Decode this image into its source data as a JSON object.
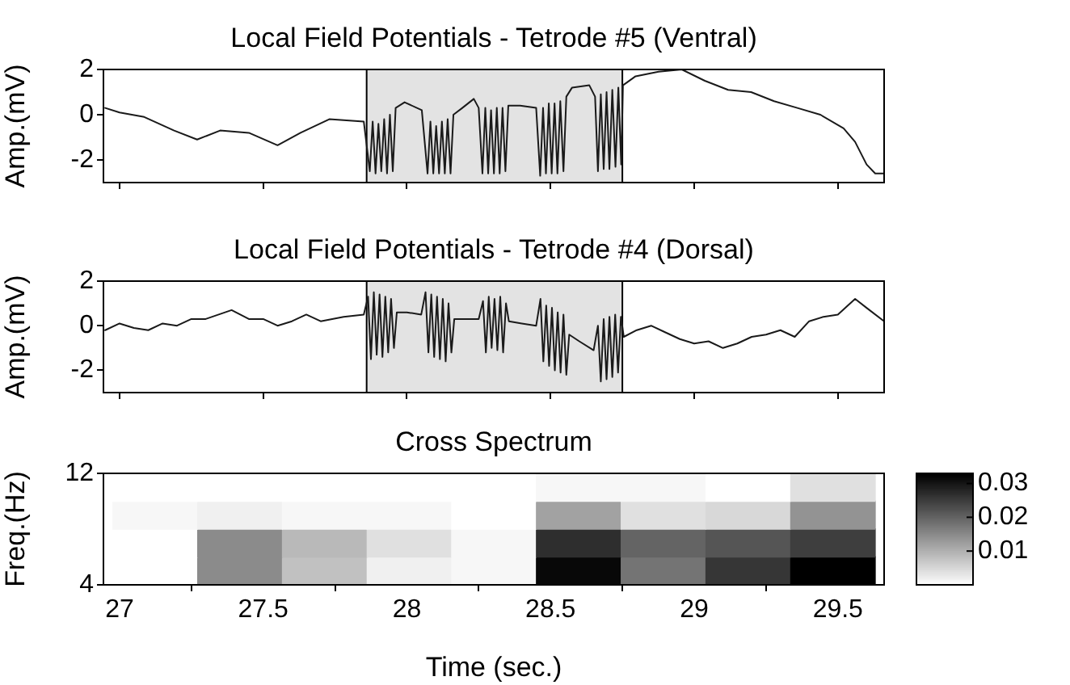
{
  "chart_data": [
    {
      "type": "line",
      "title": "Local Field Potentials - Tetrode #5 (Ventral)",
      "ylabel": "Amp.(mV)",
      "xlim": [
        26.944,
        29.661
      ],
      "xticks": [
        {
          "value": 27,
          "label": null
        },
        {
          "value": 27.5,
          "label": null
        },
        {
          "value": 28,
          "label": null
        },
        {
          "value": 28.5,
          "label": null
        },
        {
          "value": 29,
          "label": null
        },
        {
          "value": 29.5,
          "label": null
        }
      ],
      "ylim": [
        -3,
        2
      ],
      "yticks": [
        -2,
        0,
        2
      ],
      "tick_labels": "y",
      "grid": false,
      "legend": false,
      "marker": "none",
      "line_style": "solid",
      "bands": [
        {
          "axis": "x",
          "from": 27.86,
          "to": 28.75,
          "color": "#e3e3e3"
        }
      ],
      "ref_lines": [
        {
          "axis": "x",
          "value": 27.86,
          "color": "#000000"
        },
        {
          "axis": "x",
          "value": 28.75,
          "color": "#000000"
        }
      ],
      "series": [
        {
          "color": "#1a1a1a",
          "x": [
            26.95,
            27.0,
            27.086,
            27.19,
            27.27,
            27.35,
            27.45,
            27.55,
            27.63,
            27.73,
            27.85,
            27.871,
            27.881,
            27.891,
            27.901,
            27.911,
            27.921,
            27.931,
            27.941,
            27.951,
            27.961,
            27.992,
            28.052,
            28.072,
            28.082,
            28.092,
            28.102,
            28.112,
            28.122,
            28.132,
            28.142,
            28.152,
            28.162,
            28.193,
            28.233,
            28.25,
            28.263,
            28.273,
            28.283,
            28.293,
            28.303,
            28.313,
            28.323,
            28.333,
            28.343,
            28.353,
            28.394,
            28.45,
            28.464,
            28.474,
            28.484,
            28.494,
            28.504,
            28.514,
            28.524,
            28.534,
            28.545,
            28.555,
            28.575,
            28.635,
            28.655,
            28.665,
            28.675,
            28.685,
            28.695,
            28.705,
            28.715,
            28.726,
            28.736,
            28.746,
            28.752,
            28.796,
            28.876,
            28.957,
            29.037,
            29.118,
            29.198,
            29.278,
            29.359,
            29.439,
            29.52,
            29.56,
            29.6,
            29.63,
            29.661
          ],
          "values": [
            0.3,
            0.1,
            -0.1,
            -0.7,
            -1.1,
            -0.7,
            -0.8,
            -1.35,
            -0.8,
            -0.2,
            -0.3,
            -2.5,
            -0.3,
            -2.6,
            -0.4,
            -2.5,
            -0.2,
            -2.6,
            0.0,
            -2.5,
            0.3,
            0.55,
            0.2,
            -2.6,
            -0.3,
            -2.6,
            -0.5,
            -2.6,
            -0.3,
            -2.6,
            -0.2,
            -2.6,
            0.0,
            0.3,
            0.7,
            0.3,
            -2.6,
            0.3,
            -2.6,
            0.2,
            -2.6,
            0.3,
            -2.6,
            0.3,
            -2.5,
            0.4,
            0.4,
            0.3,
            -2.7,
            0.3,
            -2.6,
            0.5,
            -2.6,
            0.5,
            -2.6,
            0.6,
            -2.5,
            0.8,
            1.2,
            1.3,
            0.8,
            -2.5,
            0.9,
            -2.4,
            1.0,
            -2.4,
            1.1,
            -2.3,
            1.2,
            -2.2,
            1.3,
            1.7,
            1.9,
            2.0,
            1.5,
            1.1,
            1.0,
            0.6,
            0.3,
            0.0,
            -0.6,
            -1.2,
            -2.2,
            -2.6,
            -2.6
          ]
        }
      ]
    },
    {
      "type": "line",
      "title": "Local Field Potentials - Tetrode #4 (Dorsal)",
      "ylabel": "Amp.(mV)",
      "xlim": [
        26.944,
        29.661
      ],
      "xticks": [
        {
          "value": 27,
          "label": null
        },
        {
          "value": 27.5,
          "label": null
        },
        {
          "value": 28,
          "label": null
        },
        {
          "value": 28.5,
          "label": null
        },
        {
          "value": 29,
          "label": null
        },
        {
          "value": 29.5,
          "label": null
        }
      ],
      "ylim": [
        -3,
        2
      ],
      "yticks": [
        -2,
        0,
        2
      ],
      "tick_labels": "y",
      "grid": false,
      "legend": false,
      "marker": "none",
      "line_style": "solid",
      "bands": [
        {
          "axis": "x",
          "from": 27.86,
          "to": 28.75,
          "color": "#e3e3e3"
        }
      ],
      "ref_lines": [
        {
          "axis": "x",
          "value": 27.86,
          "color": "#000000"
        },
        {
          "axis": "x",
          "value": 28.75,
          "color": "#000000"
        }
      ],
      "series": [
        {
          "color": "#1a1a1a",
          "x": [
            26.95,
            27.0,
            27.05,
            27.1,
            27.15,
            27.2,
            27.25,
            27.3,
            27.39,
            27.45,
            27.5,
            27.55,
            27.6,
            27.65,
            27.7,
            27.78,
            27.85,
            27.865,
            27.875,
            27.885,
            27.895,
            27.905,
            27.915,
            27.925,
            27.935,
            27.945,
            27.955,
            27.965,
            28.0,
            28.05,
            28.065,
            28.075,
            28.085,
            28.095,
            28.105,
            28.115,
            28.125,
            28.135,
            28.145,
            28.155,
            28.165,
            28.2,
            28.25,
            28.265,
            28.275,
            28.285,
            28.295,
            28.305,
            28.315,
            28.325,
            28.335,
            28.345,
            28.355,
            28.4,
            28.45,
            28.465,
            28.475,
            28.485,
            28.495,
            28.505,
            28.515,
            28.525,
            28.535,
            28.545,
            28.555,
            28.565,
            28.6,
            28.65,
            28.665,
            28.675,
            28.685,
            28.695,
            28.705,
            28.715,
            28.725,
            28.735,
            28.745,
            28.755,
            28.8,
            28.85,
            28.9,
            28.95,
            29.0,
            29.05,
            29.1,
            29.15,
            29.2,
            29.25,
            29.3,
            29.35,
            29.4,
            29.45,
            29.5,
            29.56,
            29.6,
            29.661
          ],
          "values": [
            -0.2,
            0.1,
            -0.1,
            -0.2,
            0.1,
            0.0,
            0.3,
            0.3,
            0.7,
            0.3,
            0.3,
            0.0,
            0.2,
            0.5,
            0.2,
            0.4,
            0.5,
            1.3,
            -1.5,
            1.5,
            -1.3,
            1.4,
            -1.4,
            1.3,
            -1.2,
            1.2,
            -1.0,
            0.6,
            0.6,
            0.5,
            1.5,
            -1.2,
            1.4,
            -1.4,
            1.3,
            -1.5,
            1.2,
            -1.6,
            1.0,
            -1.2,
            0.3,
            0.3,
            0.3,
            1.1,
            -1.2,
            1.3,
            -1.0,
            1.2,
            -1.1,
            1.3,
            -1.2,
            1.0,
            0.2,
            0.1,
            0.0,
            1.2,
            -1.6,
            0.9,
            -1.8,
            0.8,
            -2.0,
            0.6,
            -2.1,
            0.5,
            -2.2,
            -0.4,
            -0.7,
            -1.1,
            0.0,
            -2.5,
            0.3,
            -2.4,
            0.4,
            -2.3,
            0.5,
            -2.1,
            0.4,
            -0.5,
            -0.2,
            0.0,
            -0.3,
            -0.6,
            -0.8,
            -0.7,
            -1.0,
            -0.8,
            -0.5,
            -0.4,
            -0.2,
            -0.5,
            0.2,
            0.4,
            0.5,
            1.2,
            0.8,
            0.2
          ]
        }
      ]
    },
    {
      "type": "heatmap",
      "title": "Cross Spectrum",
      "xlabel": "Time (sec.)",
      "ylabel": "Freq.(Hz)",
      "xlim": [
        26.944,
        29.661
      ],
      "xticks": [
        27,
        27.5,
        28,
        28.5,
        29,
        29.5
      ],
      "ylim": [
        4,
        12
      ],
      "yticks": [
        4,
        12
      ],
      "grid": false,
      "x": [
        27.124,
        27.419,
        27.714,
        28.009,
        28.303,
        28.598,
        28.893,
        29.188,
        29.483
      ],
      "y": [
        11,
        9,
        7,
        5
      ],
      "cells": [
        [
          0,
          0,
          0,
          0,
          0,
          0.001,
          0.001,
          0,
          0.004
        ],
        [
          0.001,
          0.002,
          0.001,
          0.001,
          0,
          0.012,
          0.004,
          0.005,
          0.014
        ],
        [
          0,
          0.015,
          0.009,
          0.004,
          0.001,
          0.027,
          0.02,
          0.022,
          0.025
        ],
        [
          0,
          0.015,
          0.008,
          0.002,
          0.001,
          0.032,
          0.018,
          0.026,
          0.033
        ]
      ],
      "clim": [
        0,
        0.033
      ],
      "cticks": [
        0.01,
        0.02,
        0.03
      ]
    }
  ]
}
